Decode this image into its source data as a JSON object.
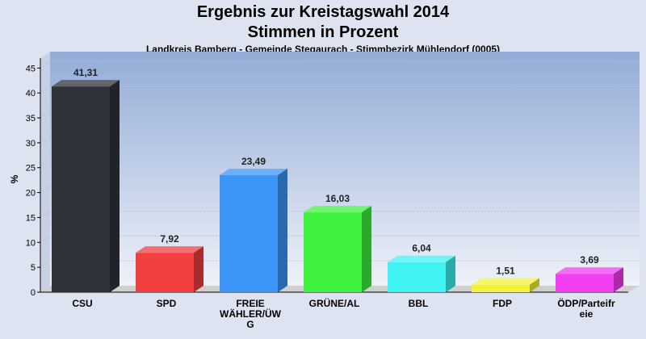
{
  "chart_data": {
    "type": "bar",
    "title": "Ergebnis zur Kreistagswahl 2014",
    "subtitle": "Stimmen in Prozent",
    "caption": "Landkreis Bamberg - Gemeinde Stegaurach - Stimmbezirk Mühlendorf (0005)",
    "ylabel": "%",
    "ylim": [
      0,
      47
    ],
    "yticks": [
      0,
      5,
      10,
      15,
      20,
      25,
      30,
      35,
      40,
      45
    ],
    "grid": true,
    "categories": [
      "CSU",
      "SPD",
      "FREIE WÄHLER/ÜWG",
      "GRÜNE/AL",
      "BBL",
      "FDP",
      "ÖDP/Parteifreie"
    ],
    "category_lines": [
      [
        "CSU"
      ],
      [
        "SPD"
      ],
      [
        "FREIE",
        "WÄHLER/ÜW",
        "G"
      ],
      [
        "GRÜNE/AL"
      ],
      [
        "BBL"
      ],
      [
        "FDP"
      ],
      [
        "ÖDP/Parteifr",
        "eie"
      ]
    ],
    "values": [
      41.31,
      7.92,
      23.49,
      16.03,
      6.04,
      1.51,
      3.69
    ],
    "value_labels": [
      "41,31",
      "7,92",
      "23,49",
      "16,03",
      "6,04",
      "1,51",
      "3,69"
    ],
    "colors": [
      "#30323a",
      "#f23f40",
      "#3c96f7",
      "#3ff23f",
      "#3ff3f3",
      "#f3f33c",
      "#f03ef0"
    ]
  }
}
